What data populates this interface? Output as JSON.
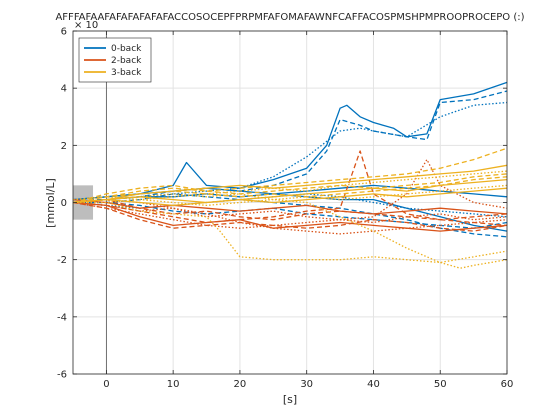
{
  "chart_data": {
    "type": "line",
    "title": "AFFFAFAAFAFAFAFAFAFACCOSOCEPFPRPMFAFOMAFAWNFCAFFACOSPMSHPMPROOPROCEPO (:)",
    "xlabel": "[s]",
    "ylabel": "[mmol/L]",
    "y_exponent": "× 10",
    "xlim": [
      -5,
      60
    ],
    "ylim": [
      -6,
      6
    ],
    "x_ticks": [
      0,
      10,
      20,
      30,
      40,
      50,
      60
    ],
    "y_ticks": [
      -6,
      -4,
      -2,
      0,
      2,
      4,
      6
    ],
    "grid": true,
    "legend_position": "top-left",
    "stimulus_marker_x": 0,
    "baseline_window": [
      -5,
      -2
    ],
    "series": [
      {
        "name": "0-back",
        "color": "#0072BD",
        "lines": [
          {
            "x": [
              -5,
              0,
              5,
              10,
              12,
              15,
              20,
              25,
              30,
              33,
              35,
              36,
              38,
              40,
              43,
              45,
              48,
              50,
              55,
              60
            ],
            "y": [
              0.1,
              0.2,
              0.3,
              0.6,
              1.4,
              0.6,
              0.5,
              0.8,
              1.2,
              2.0,
              3.3,
              3.4,
              3.0,
              2.8,
              2.6,
              2.3,
              2.4,
              3.6,
              3.8,
              4.2
            ],
            "dash": "solid"
          },
          {
            "x": [
              -5,
              0,
              5,
              10,
              15,
              20,
              25,
              30,
              33,
              35,
              38,
              40,
              45,
              48,
              50,
              55,
              60
            ],
            "y": [
              0.1,
              0.1,
              0.2,
              0.4,
              0.5,
              0.4,
              0.6,
              1.0,
              1.8,
              2.9,
              2.7,
              2.5,
              2.3,
              2.2,
              3.5,
              3.6,
              3.9
            ],
            "dash": "dash"
          },
          {
            "x": [
              -5,
              0,
              5,
              10,
              15,
              20,
              25,
              30,
              35,
              38,
              40,
              45,
              50,
              55,
              60
            ],
            "y": [
              0.0,
              0.1,
              0.2,
              0.3,
              0.4,
              0.5,
              0.9,
              1.6,
              2.5,
              2.6,
              2.5,
              2.3,
              3.0,
              3.4,
              3.5
            ],
            "dash": "dot"
          },
          {
            "x": [
              -5,
              0,
              5,
              10,
              15,
              20,
              25,
              30,
              35,
              40,
              45,
              50,
              55,
              60
            ],
            "y": [
              0.0,
              0.1,
              0.2,
              0.2,
              0.3,
              0.2,
              0.3,
              0.2,
              0.1,
              0.1,
              -0.2,
              -0.5,
              -0.8,
              -1.0
            ],
            "dash": "solid"
          },
          {
            "x": [
              -5,
              0,
              5,
              10,
              15,
              20,
              25,
              30,
              35,
              40,
              45,
              50,
              55,
              60
            ],
            "y": [
              0.0,
              0.0,
              0.1,
              0.3,
              0.2,
              0.1,
              0.0,
              -0.1,
              -0.2,
              -0.4,
              -0.6,
              -0.9,
              -1.1,
              -1.2
            ],
            "dash": "dash"
          },
          {
            "x": [
              -5,
              0,
              5,
              10,
              15,
              20,
              25,
              30,
              35,
              40,
              45,
              50,
              55,
              60
            ],
            "y": [
              0.0,
              -0.1,
              -0.2,
              -0.1,
              0.0,
              0.1,
              0.2,
              0.3,
              0.2,
              0.0,
              -0.2,
              -0.3,
              -0.4,
              -0.5
            ],
            "dash": "dot"
          },
          {
            "x": [
              -5,
              0,
              5,
              10,
              15,
              20,
              25,
              30,
              35,
              40,
              45,
              50,
              55,
              60
            ],
            "y": [
              0.1,
              0.2,
              0.3,
              0.4,
              0.5,
              0.4,
              0.3,
              0.4,
              0.5,
              0.6,
              0.5,
              0.4,
              0.3,
              0.2
            ],
            "dash": "solid"
          },
          {
            "x": [
              -5,
              0,
              5,
              10,
              15,
              20,
              25,
              30,
              35,
              40,
              45,
              50,
              55,
              60
            ],
            "y": [
              0.0,
              0.0,
              -0.1,
              -0.3,
              -0.4,
              -0.3,
              -0.2,
              -0.4,
              -0.5,
              -0.6,
              -0.7,
              -0.8,
              -0.9,
              -0.7
            ],
            "dash": "dash"
          }
        ]
      },
      {
        "name": "2-back",
        "color": "#D95319",
        "lines": [
          {
            "x": [
              -5,
              0,
              5,
              10,
              15,
              20,
              25,
              30,
              35,
              38,
              40,
              45,
              50,
              55,
              60
            ],
            "y": [
              0.0,
              -0.1,
              -0.3,
              -0.5,
              -0.7,
              -0.6,
              -0.5,
              -0.3,
              -0.2,
              1.8,
              0.3,
              -0.4,
              -0.6,
              -0.7,
              -0.8
            ],
            "dash": "dash"
          },
          {
            "x": [
              -5,
              0,
              5,
              10,
              15,
              20,
              25,
              30,
              35,
              40,
              45,
              48,
              50,
              55,
              60
            ],
            "y": [
              0.0,
              -0.2,
              -0.4,
              -0.6,
              -0.8,
              -0.9,
              -0.8,
              -0.7,
              -0.6,
              -0.5,
              0.3,
              1.5,
              0.6,
              0.0,
              -0.2
            ],
            "dash": "dot"
          },
          {
            "x": [
              -5,
              0,
              5,
              10,
              15,
              20,
              25,
              30,
              35,
              40,
              45,
              50,
              55,
              60
            ],
            "y": [
              0.0,
              -0.1,
              -0.5,
              -0.8,
              -0.7,
              -0.6,
              -0.9,
              -0.8,
              -0.7,
              -0.8,
              -0.9,
              -1.0,
              -0.9,
              -0.8
            ],
            "dash": "solid"
          },
          {
            "x": [
              -5,
              0,
              5,
              10,
              15,
              20,
              25,
              30,
              35,
              40,
              45,
              50,
              55,
              60
            ],
            "y": [
              0.0,
              0.1,
              -0.2,
              -0.4,
              -0.3,
              -0.5,
              -0.6,
              -0.4,
              -0.3,
              -0.4,
              -0.5,
              -0.6,
              -0.5,
              -0.4
            ],
            "dash": "dash"
          },
          {
            "x": [
              -5,
              0,
              5,
              10,
              15,
              20,
              25,
              30,
              35,
              40,
              45,
              50,
              55,
              60
            ],
            "y": [
              0.0,
              -0.1,
              -0.3,
              -0.2,
              -0.4,
              -0.7,
              -0.9,
              -1.0,
              -1.1,
              -1.0,
              -0.9,
              -0.8,
              -0.7,
              -0.6
            ],
            "dash": "dot"
          },
          {
            "x": [
              -5,
              0,
              5,
              10,
              15,
              20,
              25,
              30,
              35,
              40,
              45,
              50,
              55,
              60
            ],
            "y": [
              0.1,
              0.0,
              -0.2,
              -0.1,
              -0.2,
              -0.3,
              -0.2,
              -0.1,
              -0.3,
              -0.4,
              -0.3,
              -0.2,
              -0.3,
              -0.4
            ],
            "dash": "solid"
          },
          {
            "x": [
              -5,
              0,
              5,
              10,
              15,
              20,
              25,
              30,
              35,
              40,
              45,
              50,
              55,
              60
            ],
            "y": [
              0.0,
              -0.2,
              -0.6,
              -0.9,
              -0.8,
              -0.7,
              -0.8,
              -0.9,
              -0.8,
              -0.6,
              -0.7,
              -0.9,
              -1.0,
              -0.8
            ],
            "dash": "dash"
          },
          {
            "x": [
              -5,
              0,
              5,
              10,
              15,
              20,
              25,
              30,
              35,
              40,
              45,
              50,
              55,
              60
            ],
            "y": [
              0.0,
              0.1,
              0.0,
              -0.2,
              -0.5,
              -0.4,
              -0.3,
              -0.5,
              -0.6,
              -0.7,
              -0.5,
              -0.4,
              -0.6,
              -0.5
            ],
            "dash": "dot"
          }
        ]
      },
      {
        "name": "3-back",
        "color": "#EDB120",
        "lines": [
          {
            "x": [
              -5,
              0,
              5,
              10,
              15,
              17,
              20,
              25,
              30,
              35,
              40,
              45,
              50,
              55,
              60
            ],
            "y": [
              0.0,
              0.0,
              -0.3,
              -0.4,
              -0.5,
              -1.0,
              -1.9,
              -2.0,
              -2.0,
              -2.0,
              -1.9,
              -2.0,
              -2.1,
              -1.9,
              -1.7
            ],
            "dash": "dot"
          },
          {
            "x": [
              -5,
              0,
              5,
              10,
              15,
              20,
              25,
              30,
              35,
              40,
              45,
              50,
              53,
              55,
              60
            ],
            "y": [
              0.0,
              0.1,
              0.2,
              0.3,
              0.2,
              0.3,
              0.1,
              0.0,
              -0.5,
              -1.0,
              -1.6,
              -2.1,
              -2.3,
              -2.2,
              -2.0
            ],
            "dash": "dot"
          },
          {
            "x": [
              -5,
              0,
              5,
              10,
              15,
              20,
              25,
              30,
              35,
              40,
              45,
              50,
              55,
              60
            ],
            "y": [
              0.0,
              0.2,
              0.4,
              0.5,
              0.4,
              0.5,
              0.6,
              0.7,
              0.8,
              0.9,
              1.0,
              1.2,
              1.5,
              1.9
            ],
            "dash": "dash"
          },
          {
            "x": [
              -5,
              0,
              5,
              10,
              15,
              20,
              25,
              30,
              35,
              40,
              45,
              50,
              55,
              60
            ],
            "y": [
              0.0,
              0.1,
              0.3,
              0.4,
              0.5,
              0.6,
              0.5,
              0.6,
              0.7,
              0.8,
              0.9,
              1.0,
              1.1,
              1.3
            ],
            "dash": "solid"
          },
          {
            "x": [
              -5,
              0,
              5,
              10,
              15,
              20,
              25,
              30,
              35,
              40,
              45,
              50,
              55,
              60
            ],
            "y": [
              0.1,
              0.2,
              0.1,
              0.2,
              0.3,
              0.4,
              0.5,
              0.4,
              0.6,
              0.7,
              0.8,
              0.9,
              1.0,
              1.1
            ],
            "dash": "dot"
          },
          {
            "x": [
              -5,
              0,
              5,
              10,
              15,
              20,
              25,
              30,
              35,
              40,
              45,
              50,
              55,
              60
            ],
            "y": [
              0.0,
              0.3,
              0.5,
              0.6,
              0.4,
              0.3,
              0.4,
              0.5,
              0.6,
              0.5,
              0.6,
              0.7,
              0.9,
              1.0
            ],
            "dash": "dash"
          },
          {
            "x": [
              -5,
              0,
              5,
              10,
              15,
              20,
              25,
              30,
              35,
              40,
              45,
              50,
              55,
              60
            ],
            "y": [
              0.0,
              0.1,
              0.2,
              0.1,
              0.0,
              0.1,
              0.2,
              0.3,
              0.4,
              0.5,
              0.4,
              0.6,
              0.7,
              0.8
            ],
            "dash": "solid"
          },
          {
            "x": [
              -5,
              0,
              5,
              10,
              15,
              20,
              25,
              30,
              35,
              40,
              45,
              50,
              55,
              60
            ],
            "y": [
              0.0,
              0.0,
              0.1,
              0.0,
              -0.1,
              0.0,
              0.1,
              0.2,
              0.1,
              0.2,
              0.3,
              0.4,
              0.5,
              0.6
            ],
            "dash": "dot"
          },
          {
            "x": [
              -5,
              0,
              5,
              10,
              15,
              20,
              25,
              30,
              35,
              40,
              45,
              50,
              55,
              60
            ],
            "y": [
              0.0,
              0.2,
              0.3,
              0.4,
              0.3,
              0.2,
              0.3,
              0.2,
              0.3,
              0.4,
              0.5,
              0.6,
              0.8,
              0.9
            ],
            "dash": "dash"
          },
          {
            "x": [
              -5,
              0,
              5,
              10,
              15,
              20,
              25,
              30,
              35,
              40,
              45,
              50,
              55,
              60
            ],
            "y": [
              0.0,
              0.1,
              0.0,
              -0.1,
              0.0,
              0.1,
              0.0,
              0.1,
              0.2,
              0.3,
              0.2,
              0.3,
              0.4,
              0.5
            ],
            "dash": "solid"
          }
        ]
      }
    ]
  }
}
